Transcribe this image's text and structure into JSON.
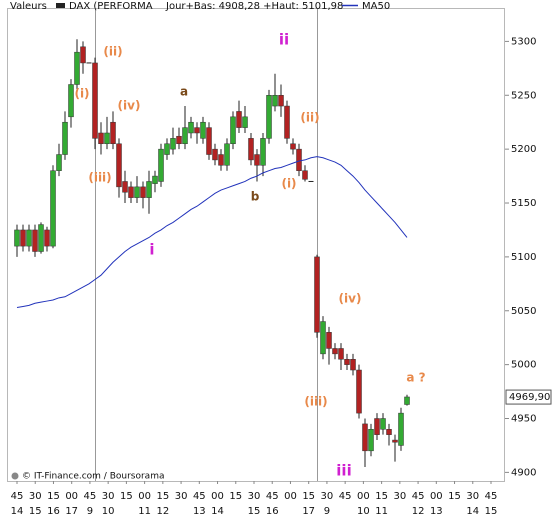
{
  "chart_data": {
    "type": "candlestick",
    "header_label": "Valeurs",
    "info": "Jour+Bas: 4908,28 +Haut: 5101,98",
    "source": "© IT-Finance.com / Boursorama",
    "up_color": "#33aa33",
    "down_color": "#b22222",
    "series": [
      {
        "name": "DAX (PERFORMA",
        "color": "#222222",
        "open": [
          5110,
          5125,
          5110,
          5125,
          5105,
          5125,
          5110,
          5180,
          5195,
          5230,
          5260,
          5295,
          5280,
          5280,
          5215,
          5205,
          5225,
          5205,
          5170,
          5165,
          5155,
          5165,
          5155,
          5168,
          5170,
          5195,
          5200,
          5212,
          5205,
          5215,
          5220,
          5210,
          5220,
          5200,
          5195,
          5185,
          5205,
          5235,
          5220,
          5210,
          5195,
          5185,
          5210,
          5240,
          5250,
          5240,
          5205,
          5200,
          5180,
          5170,
          5100,
          5010,
          5030,
          5015,
          5015,
          5005,
          5005,
          4995,
          4945,
          4920,
          4950,
          4940,
          4940,
          4930,
          4925,
          4963
        ],
        "high": [
          5130,
          5130,
          5130,
          5130,
          5132,
          5128,
          5185,
          5205,
          5235,
          5265,
          5302,
          5300,
          5280,
          5285,
          5225,
          5230,
          5235,
          5210,
          5180,
          5170,
          5175,
          5170,
          5180,
          5180,
          5205,
          5210,
          5220,
          5220,
          5240,
          5230,
          5225,
          5230,
          5225,
          5205,
          5200,
          5210,
          5235,
          5245,
          5240,
          5215,
          5200,
          5215,
          5255,
          5270,
          5260,
          5245,
          5210,
          5205,
          5185,
          5170,
          5102,
          5045,
          5035,
          5020,
          5020,
          5010,
          5010,
          5000,
          4950,
          4945,
          4955,
          4955,
          4945,
          4935,
          4960,
          4972
        ],
        "low": [
          5100,
          5105,
          5105,
          5100,
          5103,
          5105,
          5108,
          5175,
          5190,
          5220,
          5255,
          5270,
          5280,
          5200,
          5195,
          5200,
          5200,
          5155,
          5150,
          5150,
          5150,
          5145,
          5140,
          5160,
          5165,
          5190,
          5195,
          5200,
          5200,
          5210,
          5205,
          5205,
          5190,
          5185,
          5180,
          5180,
          5200,
          5215,
          5215,
          5185,
          5170,
          5175,
          5205,
          5235,
          5230,
          5205,
          5195,
          5175,
          5170,
          5170,
          5025,
          5005,
          5000,
          5005,
          4995,
          4995,
          4990,
          4950,
          4905,
          4915,
          4930,
          4935,
          4925,
          4910,
          4920,
          4962
        ],
        "close": [
          5125,
          5110,
          5125,
          5105,
          5130,
          5110,
          5180,
          5195,
          5225,
          5260,
          5290,
          5280,
          5280,
          5210,
          5205,
          5215,
          5205,
          5165,
          5160,
          5155,
          5165,
          5155,
          5170,
          5175,
          5200,
          5205,
          5210,
          5205,
          5220,
          5225,
          5215,
          5225,
          5195,
          5190,
          5185,
          5205,
          5230,
          5220,
          5230,
          5190,
          5185,
          5210,
          5250,
          5250,
          5240,
          5210,
          5200,
          5180,
          5172,
          5170,
          5030,
          5040,
          5015,
          5010,
          5005,
          5000,
          4995,
          4955,
          4920,
          4940,
          4935,
          4950,
          4935,
          4928,
          4955,
          4970
        ]
      },
      {
        "name": "MA50",
        "color": "#2233bb",
        "values": [
          5053,
          5054,
          5055,
          5057,
          5058,
          5059,
          5060,
          5062,
          5063,
          5066,
          5069,
          5072,
          5075,
          5079,
          5083,
          5089,
          5095,
          5100,
          5105,
          5109,
          5112,
          5115,
          5118,
          5122,
          5125,
          5129,
          5132,
          5136,
          5140,
          5144,
          5147,
          5151,
          5155,
          5159,
          5162,
          5164,
          5166,
          5168,
          5170,
          5173,
          5175,
          5178,
          5180,
          5182,
          5183,
          5185,
          5187,
          5189,
          5190,
          5192,
          5193,
          5192,
          5190,
          5188,
          5185,
          5180,
          5175,
          5169,
          5162,
          5156,
          5150,
          5144,
          5138,
          5132,
          5125,
          5118
        ]
      }
    ],
    "last_value": {
      "value": 4969.9,
      "label": "4969,90"
    },
    "ylim": [
      4892,
      5331
    ],
    "yticks": [
      4900,
      4950,
      5000,
      5050,
      5100,
      5150,
      5200,
      5250,
      5300
    ],
    "xticks_minutes": [
      "45",
      "30",
      "15",
      "00",
      "45",
      "30",
      "15",
      "00",
      "15",
      "30",
      "45",
      "00",
      "15",
      "30",
      "45",
      "00",
      "15",
      "30",
      "45",
      "00",
      "15",
      "30",
      "45",
      "00",
      "15",
      "30",
      "45"
    ],
    "xticks_hours": [
      "14",
      "15",
      "16",
      "17",
      "9",
      "10",
      null,
      "11",
      "12",
      null,
      "13",
      "14",
      null,
      "15",
      "16",
      null,
      "17",
      "9",
      null,
      "10",
      "11",
      null,
      "12",
      "13",
      null,
      "14",
      "15"
    ],
    "annotations": [
      {
        "text": "(ii)",
        "color": "#e8894a"
      },
      {
        "text": "(i)",
        "color": "#e8894a"
      },
      {
        "text": "(iv)",
        "color": "#e8894a"
      },
      {
        "text": "a",
        "color": "#7a4a1a"
      },
      {
        "text": "(iii)",
        "color": "#e8894a"
      },
      {
        "text": "i",
        "color": "#d020d0"
      },
      {
        "text": "b",
        "color": "#7a4a1a"
      },
      {
        "text": "ii",
        "color": "#d020d0"
      },
      {
        "text": "(ii)",
        "color": "#e8894a"
      },
      {
        "text": "(i)",
        "color": "#e8894a"
      },
      {
        "text": "(iv)",
        "color": "#e8894a"
      },
      {
        "text": "(iii)",
        "color": "#e8894a"
      },
      {
        "text": "iii",
        "color": "#d020d0"
      },
      {
        "text": "a ?",
        "color": "#e8894a"
      }
    ]
  }
}
